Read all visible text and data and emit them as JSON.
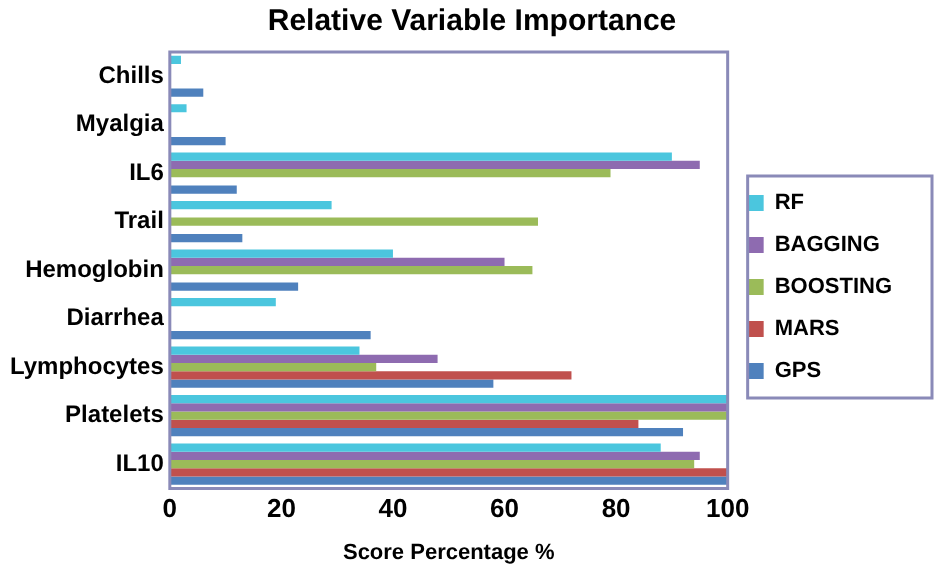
{
  "chart_data": {
    "type": "bar",
    "orientation": "horizontal",
    "title": "Relative Variable Importance",
    "xlabel": "Score Percentage %",
    "categories": [
      "Chills",
      "Myalgia",
      "IL6",
      "Trail",
      "Hemoglobin",
      "Diarrhea",
      "Lymphocytes",
      "Platelets",
      "IL10"
    ],
    "series": [
      {
        "name": "RF",
        "color": "#4bc6de",
        "values": [
          2,
          3,
          90,
          29,
          40,
          19,
          34,
          100,
          88
        ]
      },
      {
        "name": "BAGGING",
        "color": "#8e6bb0",
        "values": [
          0,
          0,
          95,
          0,
          60,
          0,
          48,
          100,
          95
        ]
      },
      {
        "name": "BOOSTING",
        "color": "#9bbb59",
        "values": [
          0,
          0,
          79,
          66,
          65,
          0,
          37,
          100,
          94
        ]
      },
      {
        "name": "MARS",
        "color": "#c0504d",
        "values": [
          0,
          0,
          0,
          0,
          0,
          0,
          72,
          84,
          100
        ]
      },
      {
        "name": "GPS",
        "color": "#4f81bd",
        "values": [
          6,
          10,
          12,
          13,
          23,
          36,
          58,
          92,
          100
        ]
      }
    ],
    "xlim": [
      0,
      100
    ],
    "xticks": [
      0,
      20,
      40,
      60,
      80,
      100
    ],
    "grid": false,
    "legend": "right"
  }
}
